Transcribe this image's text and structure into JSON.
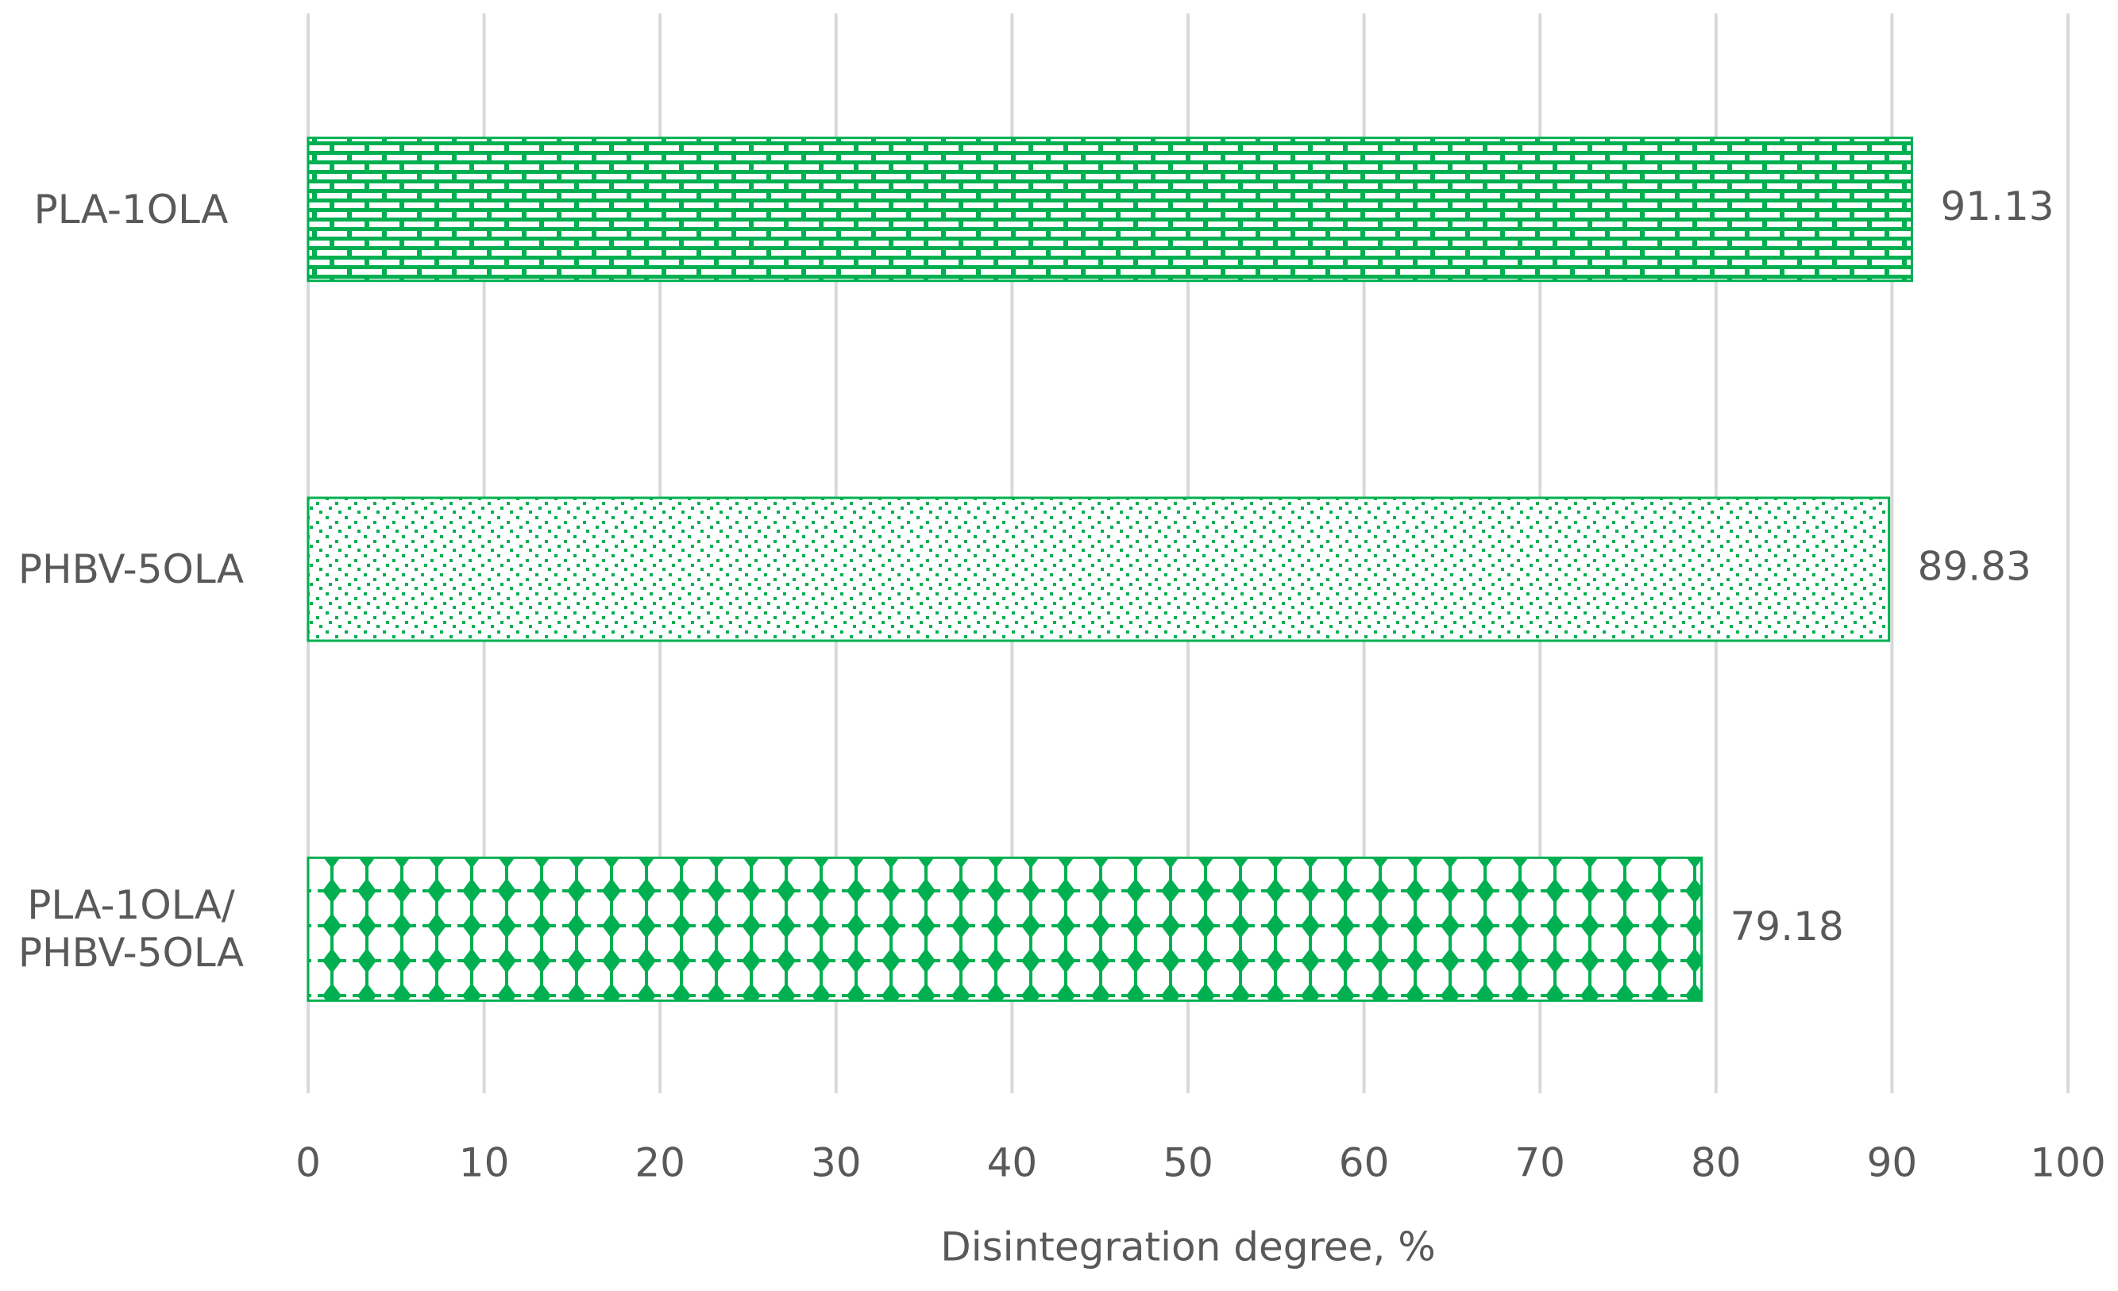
{
  "chart_data": {
    "type": "bar",
    "orientation": "horizontal",
    "x_label": "Disintegration degree, %",
    "categories": [
      "PLA-1OLA",
      "PHBV-5OLA",
      "PLA-1OLA/\nPHBV-5OLA"
    ],
    "values": [
      91.13,
      89.83,
      79.18
    ],
    "color": "#00b050",
    "xlim": [
      0,
      100
    ],
    "xticks": [
      0,
      10,
      20,
      30,
      40,
      50,
      60,
      70,
      80,
      90,
      100
    ],
    "grid": true
  }
}
